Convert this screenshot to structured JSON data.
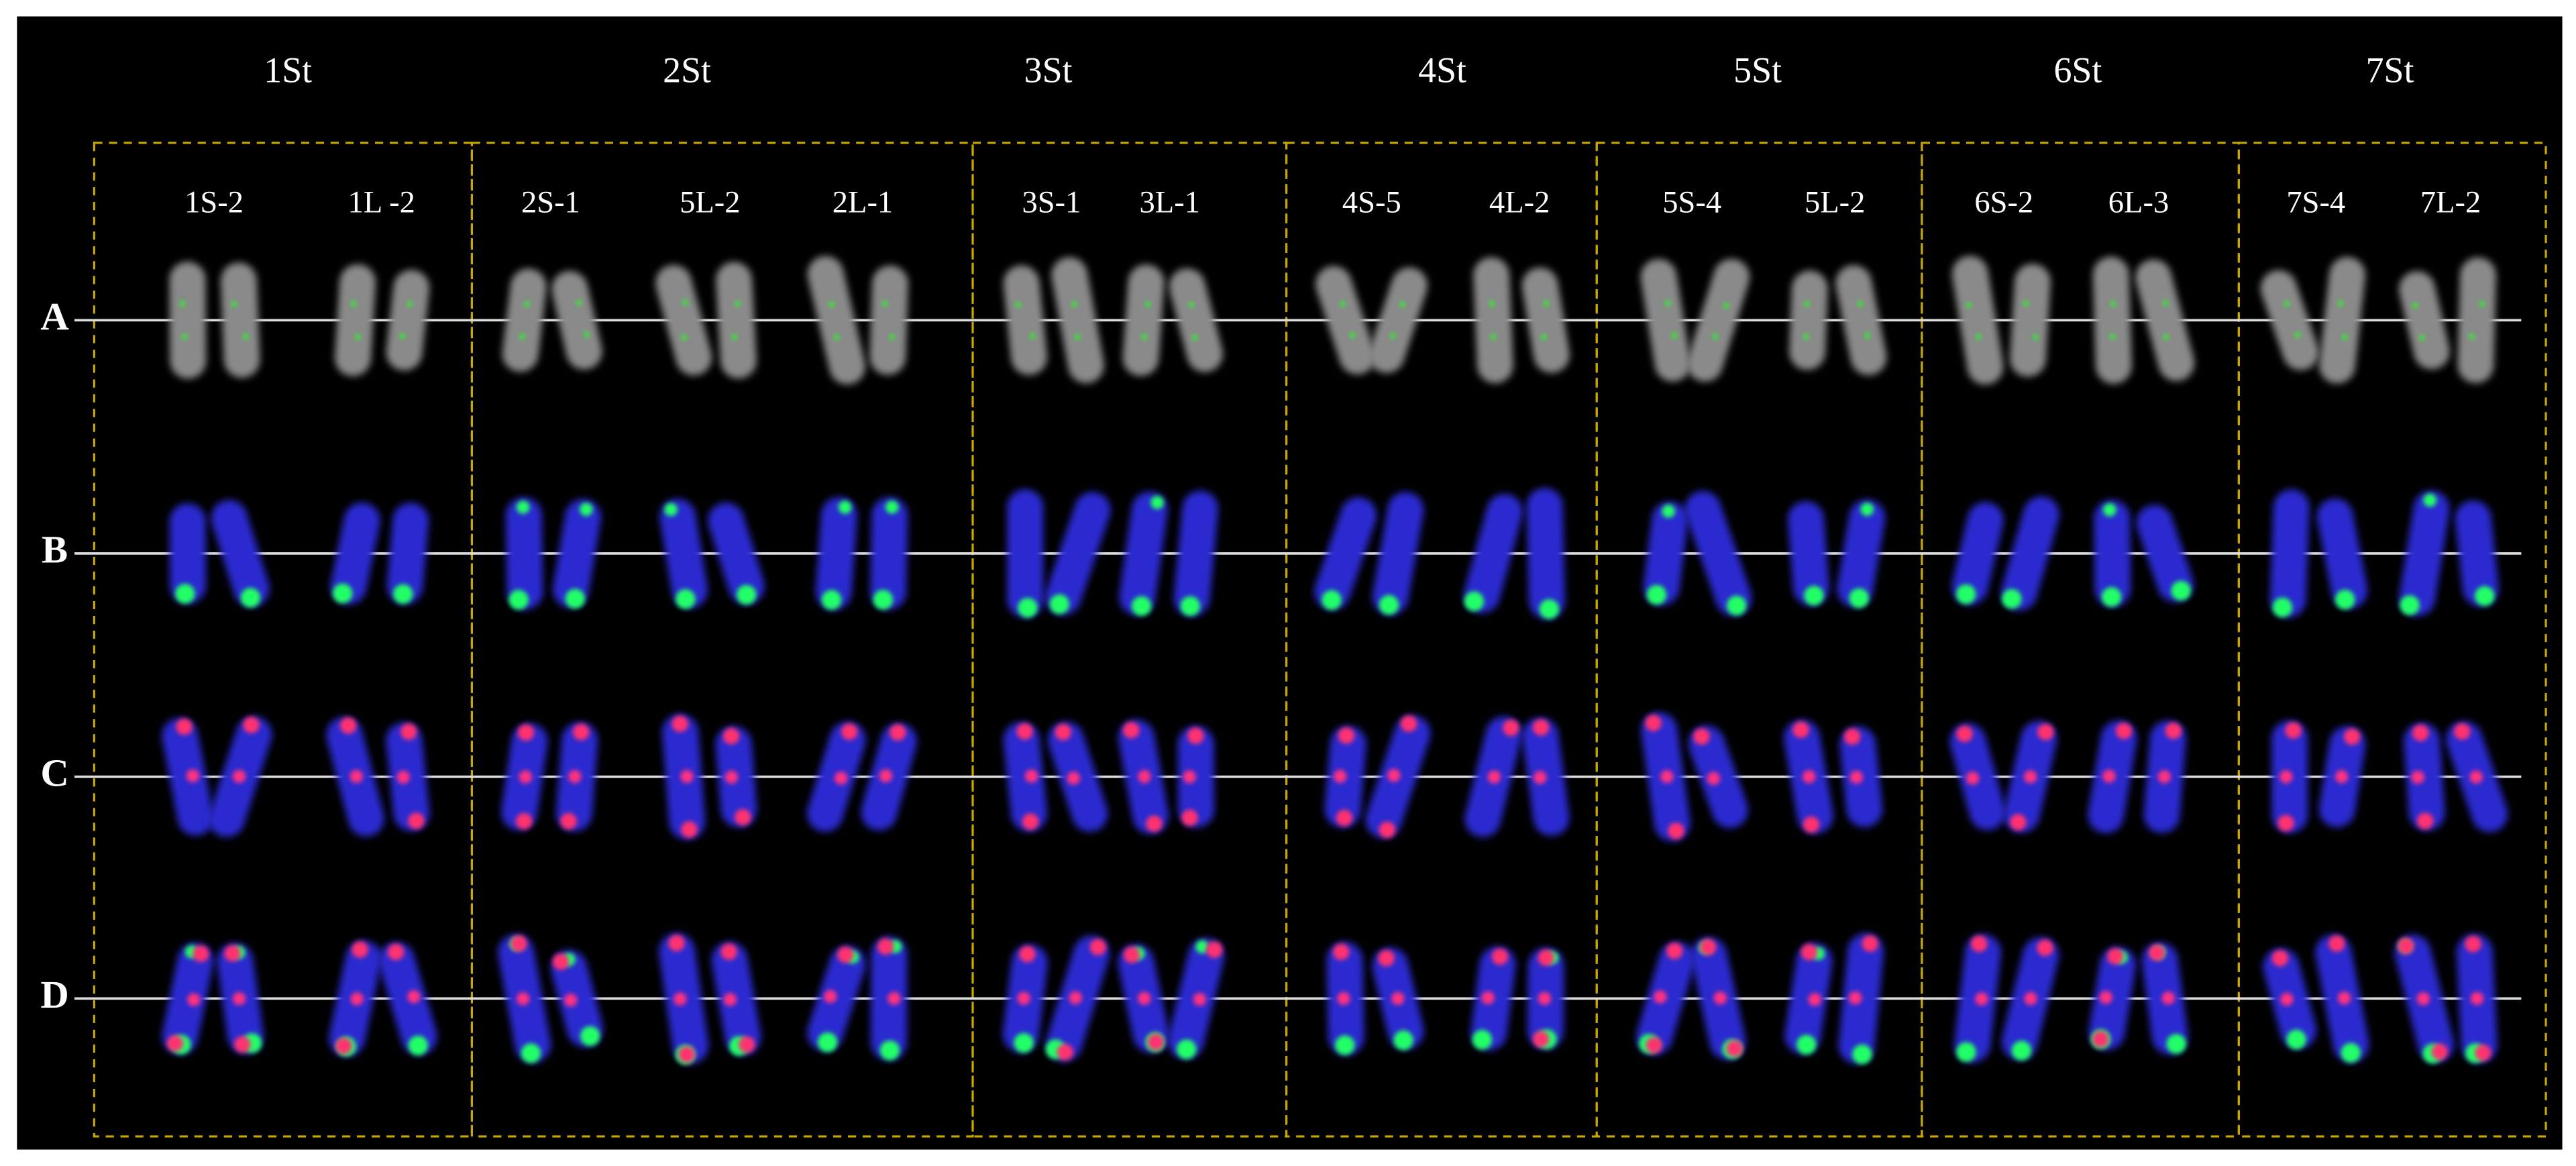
{
  "groups": [
    {
      "title": "1St",
      "labels": [
        "1S-2",
        "1L -2"
      ]
    },
    {
      "title": "2St",
      "labels": [
        "2S-1",
        "5L-2",
        "2L-1"
      ]
    },
    {
      "title": "3St",
      "labels": [
        "3S-1",
        "3L-1"
      ]
    },
    {
      "title": "4St",
      "labels": [
        "4S-5",
        "4L-2"
      ]
    },
    {
      "title": "5St",
      "labels": [
        "5S-4",
        "5L-2"
      ]
    },
    {
      "title": "6St",
      "labels": [
        "6S-2",
        "6L-3"
      ]
    },
    {
      "title": "7St",
      "labels": [
        "7S-4",
        "7L-2"
      ]
    }
  ],
  "row_labels": [
    "A",
    "B",
    "C",
    "D"
  ]
}
